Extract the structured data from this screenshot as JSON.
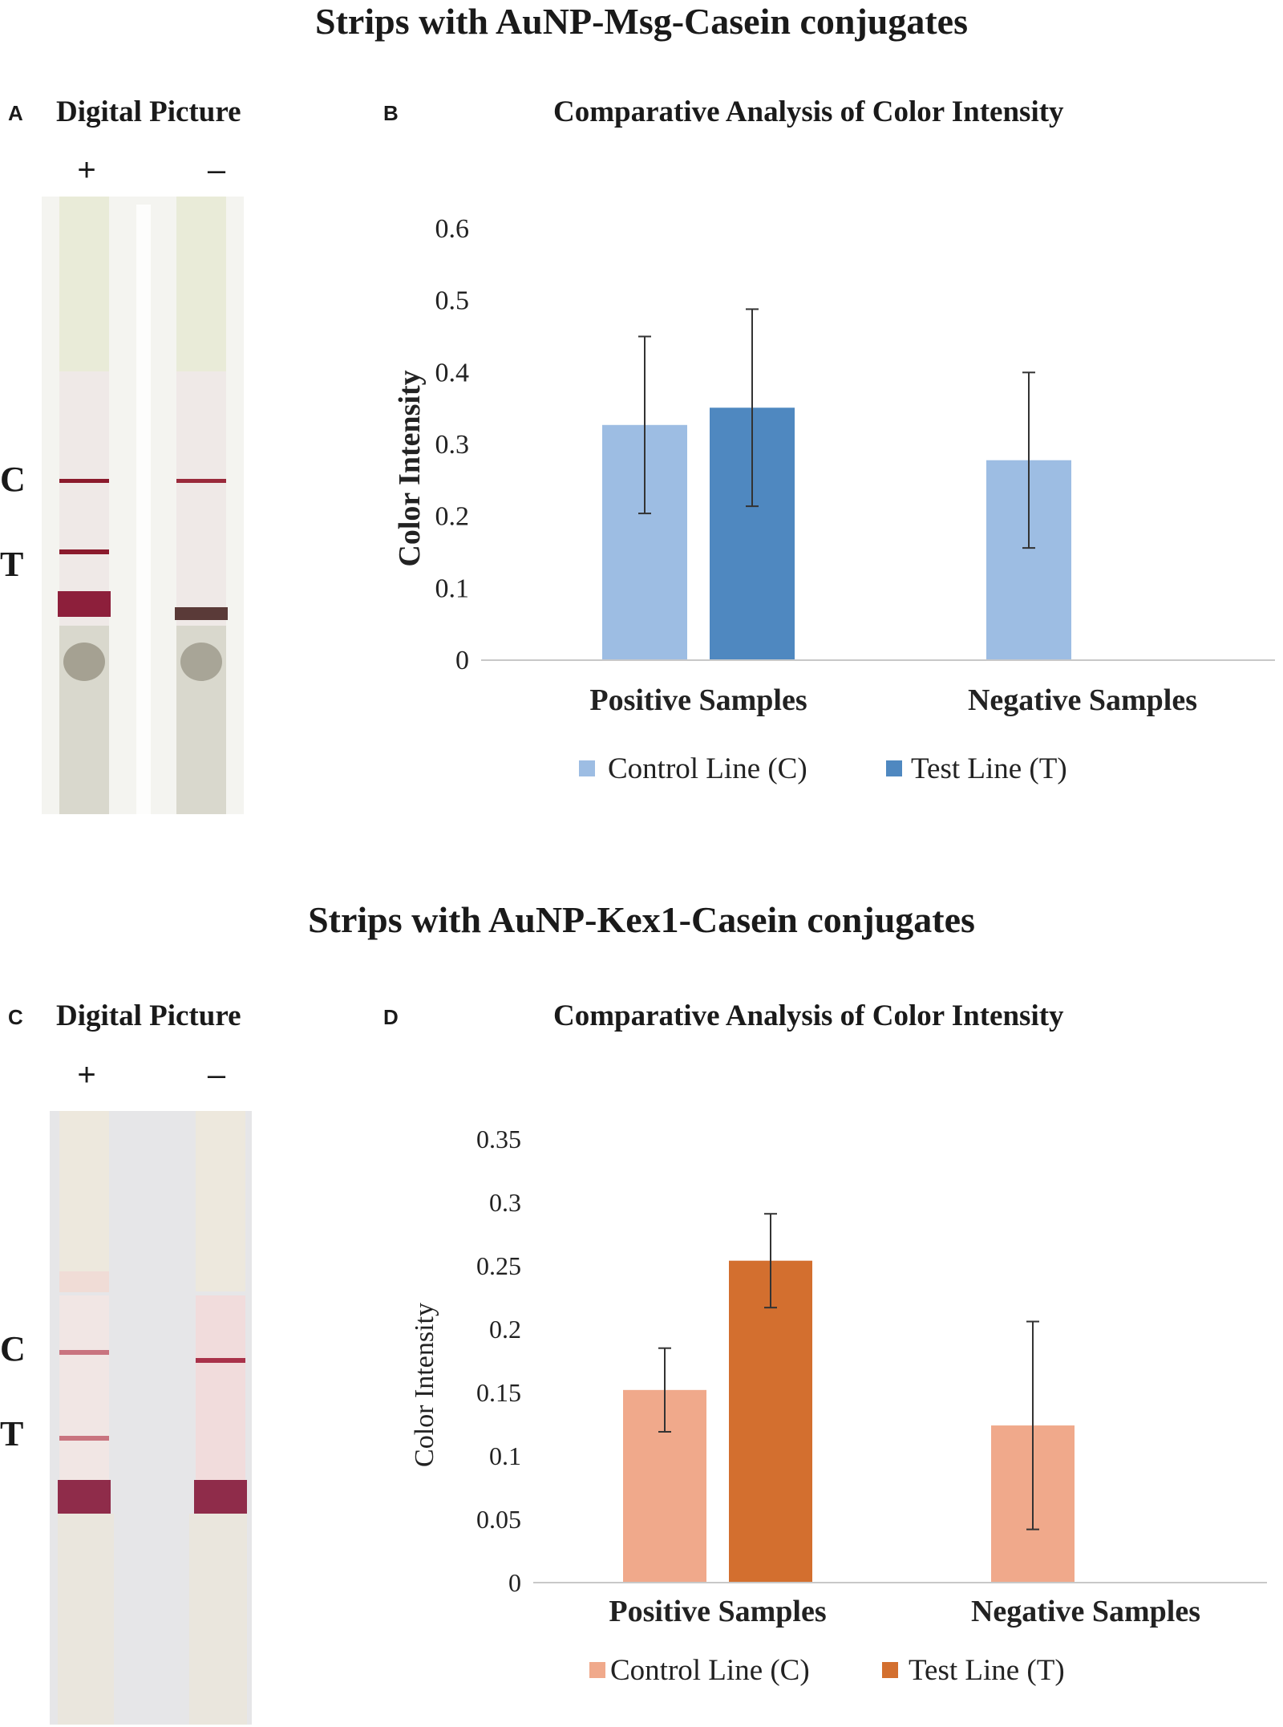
{
  "figure": [
    {
      "section_title": "Strips with AuNP-Msg-Casein conjugates",
      "photo_panel": {
        "letter": "A",
        "title": "Digital Picture",
        "positive_sign": "+",
        "negative_sign": "–",
        "control_label": "C",
        "test_label": "T"
      },
      "chart_panel": {
        "letter": "B",
        "title": "Comparative Analysis of Color Intensity"
      }
    },
    {
      "section_title": "Strips with AuNP-Kex1-Casein conjugates",
      "photo_panel": {
        "letter": "C",
        "title": "Digital Picture",
        "positive_sign": "+",
        "negative_sign": "–",
        "control_label": "C",
        "test_label": "T"
      },
      "chart_panel": {
        "letter": "D",
        "title": "Comparative Analysis of Color Intensity"
      }
    }
  ],
  "chart_data": [
    {
      "type": "bar",
      "title": "Comparative Analysis of Color Intensity",
      "ylabel": "Color Intensity",
      "xlabel": "",
      "categories": [
        "Positive Samples",
        "Negative Samples"
      ],
      "ylim": [
        0,
        0.6
      ],
      "yticks": [
        "0",
        "0.1",
        "0.2",
        "0.3",
        "0.4",
        "0.5",
        "0.6"
      ],
      "grid": false,
      "legend": "bottom",
      "series": [
        {
          "name": "Control Line (C)",
          "color": "#9dbde3",
          "values": [
            0.327,
            0.278
          ],
          "error": [
            0.123,
            0.122
          ]
        },
        {
          "name": "Test Line (T)",
          "color": "#4f88c0",
          "values": [
            0.351,
            null
          ],
          "error": [
            0.137,
            null
          ]
        }
      ]
    },
    {
      "type": "bar",
      "title": "Comparative Analysis of Color Intensity",
      "ylabel": "Color Intensity",
      "xlabel": "",
      "categories": [
        "Positive Samples",
        "Negative Samples"
      ],
      "ylim": [
        0,
        0.35
      ],
      "yticks": [
        "0",
        "0.05",
        "0.1",
        "0.15",
        "0.2",
        "0.25",
        "0.3",
        "0.35"
      ],
      "grid": false,
      "legend": "bottom",
      "series": [
        {
          "name": "Control Line (C)",
          "color": "#f0a98b",
          "values": [
            0.152,
            0.124
          ],
          "error": [
            0.033,
            0.082
          ]
        },
        {
          "name": "Test Line (T)",
          "color": "#d36f2f",
          "values": [
            0.254,
            null
          ],
          "error": [
            0.037,
            null
          ]
        }
      ]
    }
  ]
}
